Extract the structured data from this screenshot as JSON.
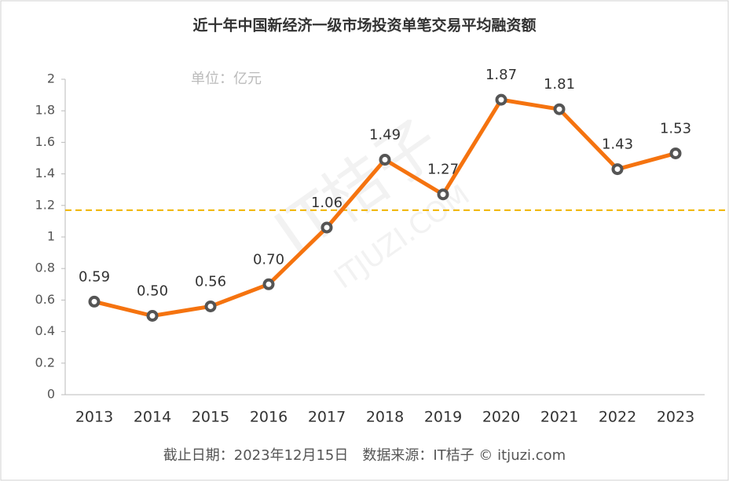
{
  "chart_data": {
    "type": "line",
    "title": "近十年中国新经济一级市场投资单笔交易平均融资额",
    "unit_note": "单位：亿元",
    "footer": "截止日期：2023年12月15日　数据来源：IT桔子 © itjuzi.com",
    "watermark": [
      "IT桔子",
      "ITJUZI.COM"
    ],
    "categories": [
      "2013",
      "2014",
      "2015",
      "2016",
      "2017",
      "2018",
      "2019",
      "2020",
      "2021",
      "2022",
      "2023"
    ],
    "series": [
      {
        "name": "平均融资额",
        "color": "#f5730f",
        "values": [
          0.59,
          0.5,
          0.56,
          0.7,
          1.06,
          1.49,
          1.27,
          1.87,
          1.81,
          1.43,
          1.53
        ],
        "value_labels": [
          "0.59",
          "0.50",
          "0.56",
          "0.70",
          "1.06",
          "1.49",
          "1.27",
          "1.87",
          "1.81",
          "1.43",
          "1.53"
        ]
      }
    ],
    "average_line": 1.17,
    "average_color": "#f0b400",
    "ylim": [
      0,
      2
    ],
    "yticks": [
      0,
      0.2,
      0.4,
      0.6,
      0.8,
      1,
      1.2,
      1.4,
      1.6,
      1.8,
      2
    ]
  }
}
